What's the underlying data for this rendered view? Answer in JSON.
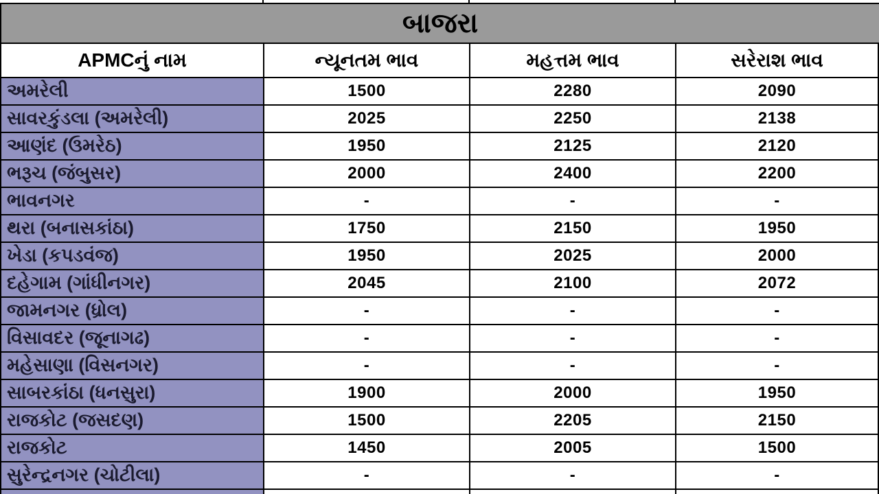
{
  "chart_data": {
    "type": "table",
    "title": "બાજરા",
    "columns": [
      "APMCનું નામ",
      "ન્યૂનતમ ભાવ",
      "મહત્તમ ભાવ",
      "સરેરાશ ભાવ"
    ],
    "rows": [
      {
        "name": "અમરેલી",
        "min": "1500",
        "max": "2280",
        "avg": "2090"
      },
      {
        "name": "સાવરકુંડલા (અમરેલી)",
        "min": "2025",
        "max": "2250",
        "avg": "2138"
      },
      {
        "name": "આણંદ (ઉમરેઠ)",
        "min": "1950",
        "max": "2125",
        "avg": "2120"
      },
      {
        "name": "ભરૂચ (જંબુસર)",
        "min": "2000",
        "max": "2400",
        "avg": "2200"
      },
      {
        "name": "ભાવનગર",
        "min": "-",
        "max": "-",
        "avg": "-"
      },
      {
        "name": "થરા (બનાસકાંઠા)",
        "min": "1750",
        "max": "2150",
        "avg": "1950"
      },
      {
        "name": "ખેડા (કપડવંજ)",
        "min": "1950",
        "max": "2025",
        "avg": "2000"
      },
      {
        "name": "દહેગામ (ગાંધીનગર)",
        "min": "2045",
        "max": "2100",
        "avg": "2072"
      },
      {
        "name": "જામનગર (ધ્રોલ)",
        "min": "-",
        "max": "-",
        "avg": "-"
      },
      {
        "name": "વિસાવદર (જૂનાગઢ)",
        "min": "-",
        "max": "-",
        "avg": "-"
      },
      {
        "name": "મહેસાણા (વિસનગર)",
        "min": "-",
        "max": "-",
        "avg": "-"
      },
      {
        "name": "સાબરકાંઠા (ધનસુરા)",
        "min": "1900",
        "max": "2000",
        "avg": "1950"
      },
      {
        "name": "રાજકોટ (જસદણ)",
        "min": "1500",
        "max": "2205",
        "avg": "2150"
      },
      {
        "name": "રાજકોટ",
        "min": "1450",
        "max": "2005",
        "avg": "1500"
      },
      {
        "name": "સુરેન્દ્રનગર (ચોટીલા)",
        "min": "-",
        "max": "-",
        "avg": "-"
      }
    ]
  },
  "colors": {
    "title_bg": "#9A9A9A",
    "name_cell_bg": "#9292C1",
    "border": "#000000",
    "name_text": "#1B1B2F",
    "value_text": "#000000"
  }
}
